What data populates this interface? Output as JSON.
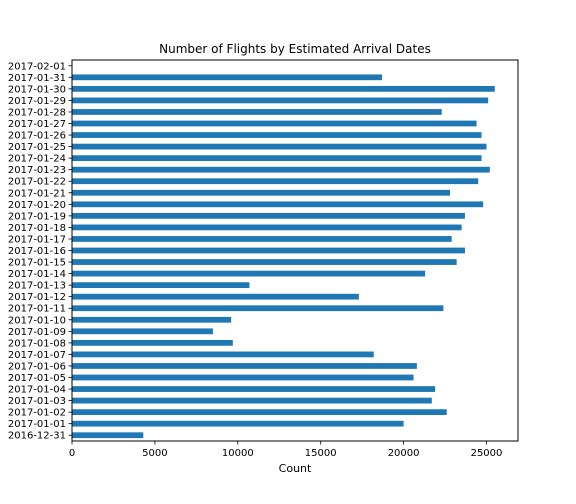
{
  "chart_data": {
    "type": "bar",
    "orientation": "horizontal",
    "title": "Number of Flights by Estimated Arrival Dates",
    "xlabel": "Count",
    "ylabel": "",
    "xlim": [
      0,
      26900
    ],
    "xticks": [
      0,
      5000,
      10000,
      15000,
      20000,
      25000
    ],
    "grid": false,
    "bar_color": "#1f77b4",
    "categories": [
      "2016-12-31",
      "2017-01-01",
      "2017-01-02",
      "2017-01-03",
      "2017-01-04",
      "2017-01-05",
      "2017-01-06",
      "2017-01-07",
      "2017-01-08",
      "2017-01-09",
      "2017-01-10",
      "2017-01-11",
      "2017-01-12",
      "2017-01-13",
      "2017-01-14",
      "2017-01-15",
      "2017-01-16",
      "2017-01-17",
      "2017-01-18",
      "2017-01-19",
      "2017-01-20",
      "2017-01-21",
      "2017-01-22",
      "2017-01-23",
      "2017-01-24",
      "2017-01-25",
      "2017-01-26",
      "2017-01-27",
      "2017-01-28",
      "2017-01-29",
      "2017-01-30",
      "2017-01-31",
      "2017-02-01"
    ],
    "values": [
      4300,
      20000,
      22600,
      21700,
      21900,
      20600,
      20800,
      18200,
      9700,
      8500,
      9600,
      22400,
      17300,
      10700,
      21300,
      23200,
      23700,
      22900,
      23500,
      23700,
      24800,
      22800,
      24500,
      25200,
      24700,
      25000,
      24700,
      24400,
      22300,
      25100,
      25500,
      18700,
      0
    ]
  }
}
